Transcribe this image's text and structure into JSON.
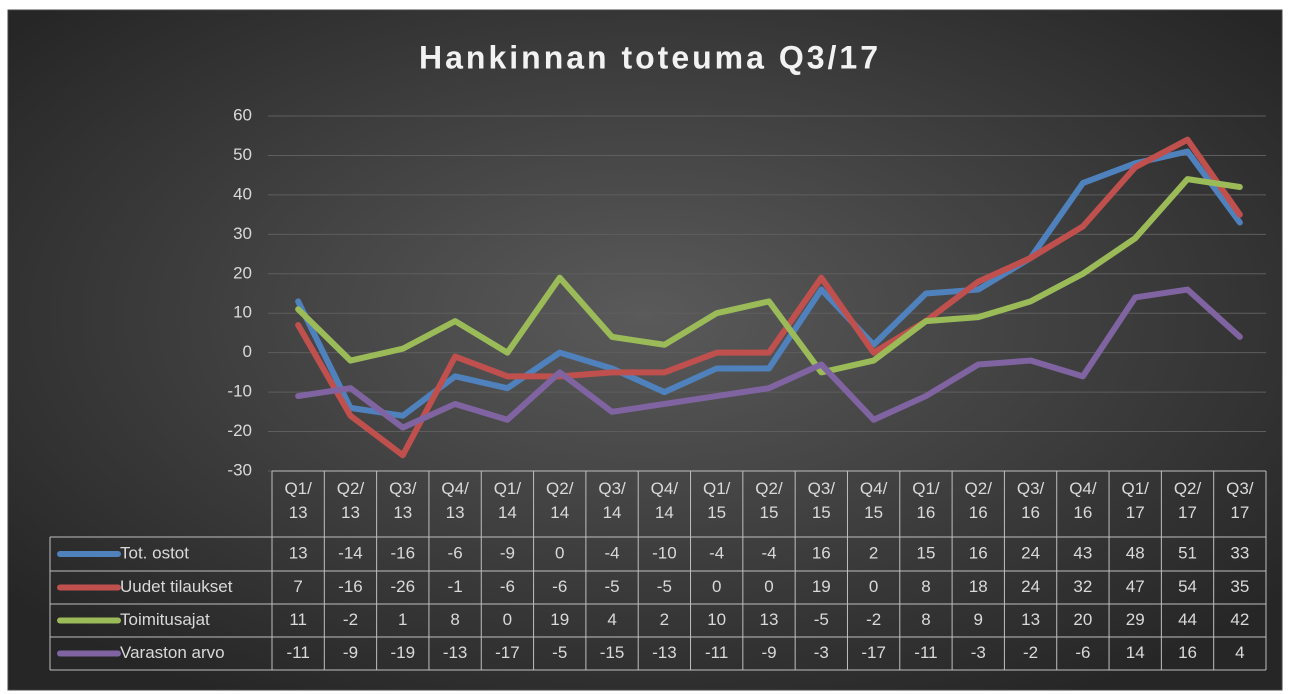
{
  "chart_data": {
    "type": "line",
    "title": "Hankinnan toteuma Q3/17",
    "categories": [
      "Q1/13",
      "Q2/13",
      "Q3/13",
      "Q4/13",
      "Q1/14",
      "Q2/14",
      "Q3/14",
      "Q4/14",
      "Q1/15",
      "Q2/15",
      "Q3/15",
      "Q4/15",
      "Q1/16",
      "Q2/16",
      "Q3/16",
      "Q4/16",
      "Q1/17",
      "Q2/17",
      "Q3/17"
    ],
    "series": [
      {
        "name": "Tot. ostot",
        "color": "#4f81bd",
        "values": [
          13,
          -14,
          -16,
          -6,
          -9,
          0,
          -4,
          -10,
          -4,
          -4,
          16,
          2,
          15,
          16,
          24,
          43,
          48,
          51,
          33
        ]
      },
      {
        "name": "Uudet tilaukset",
        "color": "#c0504d",
        "values": [
          7,
          -16,
          -26,
          -1,
          -6,
          -6,
          -5,
          -5,
          0,
          0,
          19,
          0,
          8,
          18,
          24,
          32,
          47,
          54,
          35
        ]
      },
      {
        "name": "Toimitusajat",
        "color": "#9bbb59",
        "values": [
          11,
          -2,
          1,
          8,
          0,
          19,
          4,
          2,
          10,
          13,
          -5,
          -2,
          8,
          9,
          13,
          20,
          29,
          44,
          42
        ]
      },
      {
        "name": "Varaston arvo",
        "color": "#8064a2",
        "values": [
          -11,
          -9,
          -19,
          -13,
          -17,
          -5,
          -15,
          -13,
          -11,
          -9,
          -3,
          -17,
          -11,
          -3,
          -2,
          -6,
          14,
          16,
          4
        ]
      }
    ],
    "ylim": [
      -30,
      60
    ],
    "yticks": [
      -30,
      -20,
      -10,
      0,
      10,
      20,
      30,
      40,
      50,
      60
    ],
    "grid": true,
    "data_table": true
  }
}
